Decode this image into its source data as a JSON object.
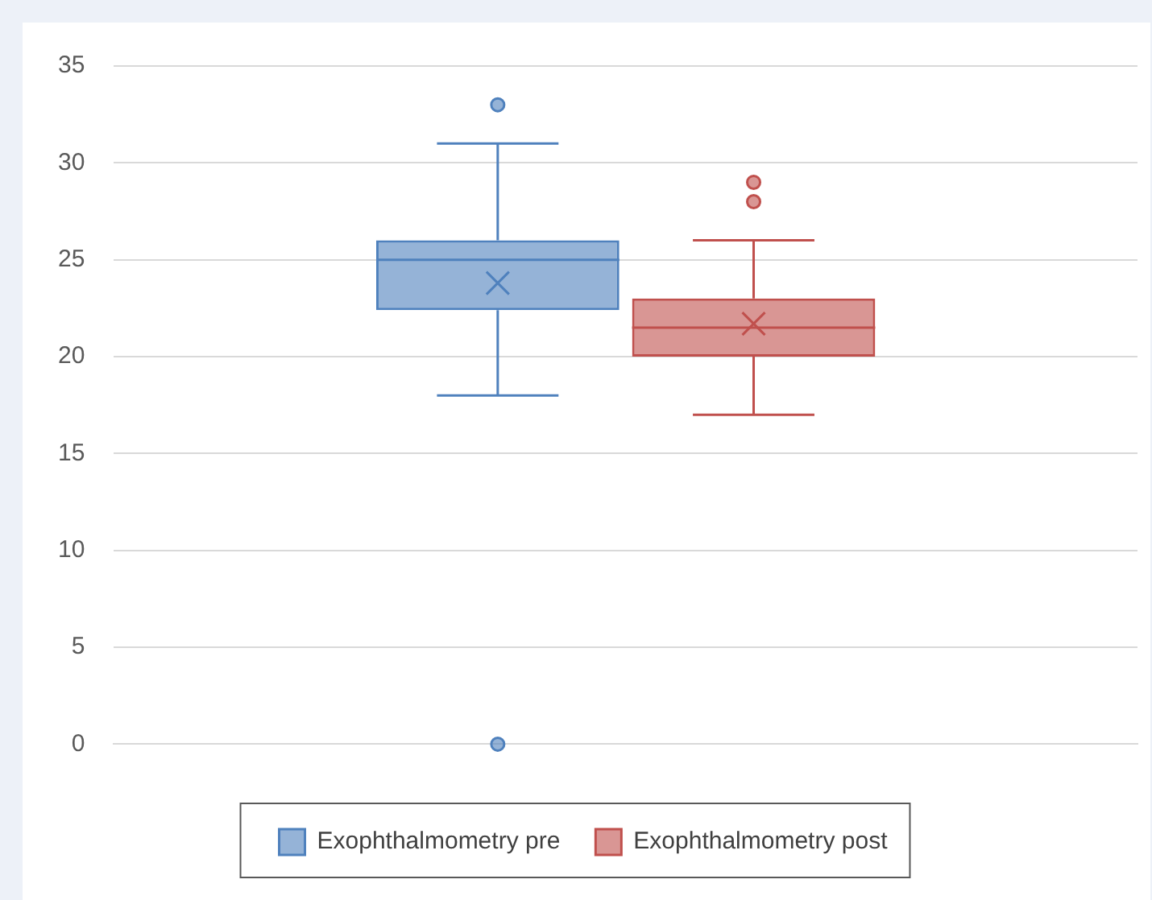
{
  "chart_data": {
    "type": "box",
    "categories": [
      null
    ],
    "series": [
      {
        "name": "Exophthalmometry pre",
        "color": "#4f81bd",
        "boxes": [
          {
            "low": 18,
            "q1": 22.4,
            "median": 25,
            "q3": 26,
            "high": 31,
            "mean": 23.8,
            "outliers": [
              33,
              0
            ]
          }
        ]
      },
      {
        "name": "Exophthalmometry post",
        "color": "#c0504d",
        "boxes": [
          {
            "low": 17,
            "q1": 20,
            "median": 21.5,
            "q3": 23,
            "high": 26,
            "mean": 21.7,
            "outliers": [
              29,
              28
            ]
          }
        ]
      }
    ],
    "ylim": [
      0,
      35
    ],
    "yticks": [
      0,
      5,
      10,
      15,
      20,
      25,
      30,
      35
    ],
    "grid": "y",
    "legend": "bottom"
  }
}
